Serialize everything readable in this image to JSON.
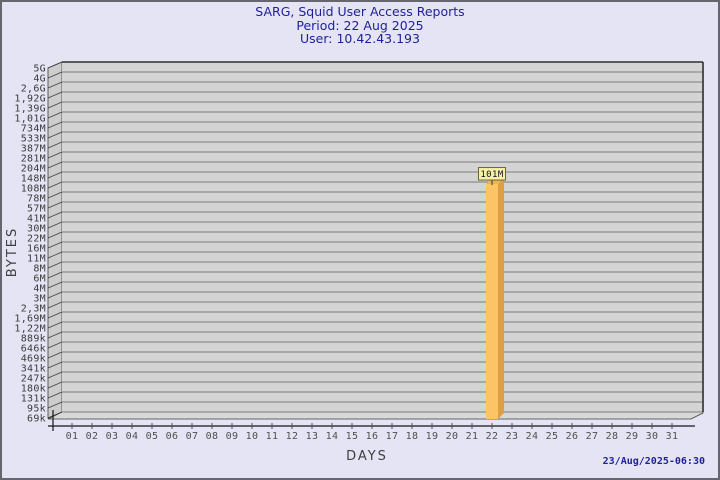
{
  "window": {
    "background_color": "#e4e4f4",
    "border_color": "#66666e"
  },
  "header": {
    "title": "SARG, Squid User Access Reports",
    "period": "Period: 22 Aug 2025",
    "user": "User: 10.42.43.193",
    "text_color": "#1f1f9c"
  },
  "footer": {
    "generated_timestamp": "23/Aug/2025-06:30"
  },
  "chart_data": {
    "type": "bar",
    "title": "SARG, Squid User Access Reports",
    "subtitle_period": "Period: 22 Aug 2025",
    "subtitle_user": "User: 10.42.43.193",
    "xlabel": "DAYS",
    "ylabel": "BYTES",
    "y_scale": "log",
    "grid": true,
    "legend": false,
    "y_axis_range_bytes": [
      69000,
      5000000000
    ],
    "y_tick_labels": [
      "5G",
      "4G",
      "2,6G",
      "1,92G",
      "1,39G",
      "1,01G",
      "734M",
      "533M",
      "387M",
      "281M",
      "204M",
      "148M",
      "108M",
      "78M",
      "57M",
      "41M",
      "30M",
      "22M",
      "16M",
      "11M",
      "8M",
      "6M",
      "4M",
      "3M",
      "2,3M",
      "1,69M",
      "1,22M",
      "889k",
      "646k",
      "469k",
      "341k",
      "247k",
      "180k",
      "131k",
      "95k",
      "69k"
    ],
    "categories": [
      "01",
      "02",
      "03",
      "04",
      "05",
      "06",
      "07",
      "08",
      "09",
      "10",
      "11",
      "12",
      "13",
      "14",
      "15",
      "16",
      "17",
      "18",
      "19",
      "20",
      "21",
      "22",
      "23",
      "24",
      "25",
      "26",
      "27",
      "28",
      "29",
      "30",
      "31"
    ],
    "bars": [
      {
        "category": "22",
        "value_label": "101M",
        "value_bytes": 101000000
      }
    ],
    "colors": {
      "bar_front": "#fcc367",
      "bar_side": "#dd9f44",
      "bar_top": "#f0b254",
      "plot_background": "#d4d4d4",
      "gridline": "#7b7b7b",
      "wall_fill": "#cdcdcd",
      "floor_fill": "#d8d8d8",
      "label_box_fill": "#f6efac",
      "label_box_border": "#6b682a",
      "axis_text": "#4f4f4f"
    }
  }
}
